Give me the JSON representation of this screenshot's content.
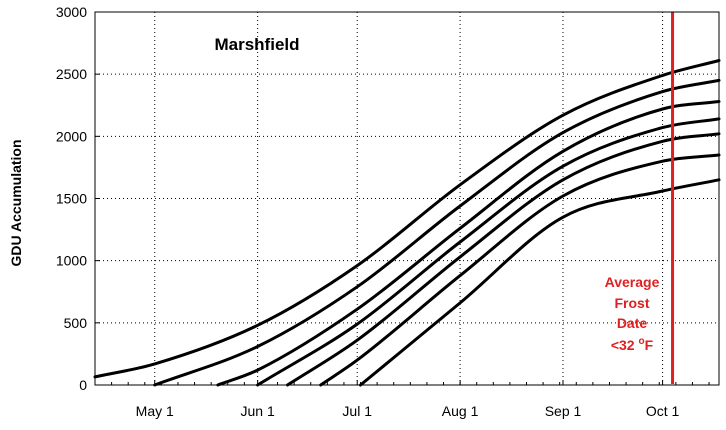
{
  "chart_data": {
    "type": "line",
    "title": "Marshfield",
    "xlabel": "",
    "ylabel": "GDU Accumulation",
    "xlim": [
      "2019-04-13",
      "2019-10-18"
    ],
    "ylim": [
      0,
      3000
    ],
    "x_ticks": [
      "2019-05-01",
      "2019-06-01",
      "2019-07-01",
      "2019-08-01",
      "2019-09-01",
      "2019-10-01"
    ],
    "x_tick_labels": [
      "May 1",
      "Jun 1",
      "Jul 1",
      "Aug 1",
      "Sep 1",
      "Oct 1"
    ],
    "y_ticks": [
      0,
      500,
      1000,
      1500,
      2000,
      2500,
      3000
    ],
    "y_tick_labels": [
      "0",
      "500",
      "1000",
      "1500",
      "2000",
      "2500",
      "3000"
    ],
    "grid": true,
    "series": [
      {
        "x": [
          "2019-04-13",
          "2019-05-01",
          "2019-06-01",
          "2019-07-01",
          "2019-08-01",
          "2019-09-01",
          "2019-10-01",
          "2019-10-18"
        ],
        "values": [
          65,
          170,
          480,
          960,
          1610,
          2170,
          2490,
          2610
        ]
      },
      {
        "x": [
          "2019-05-01",
          "2019-06-01",
          "2019-07-01",
          "2019-08-01",
          "2019-09-01",
          "2019-10-01",
          "2019-10-18"
        ],
        "values": [
          0,
          310,
          790,
          1440,
          2030,
          2360,
          2450
        ]
      },
      {
        "x": [
          "2019-05-20",
          "2019-06-01",
          "2019-07-01",
          "2019-08-01",
          "2019-09-01",
          "2019-10-01",
          "2019-10-18"
        ],
        "values": [
          0,
          120,
          610,
          1260,
          1880,
          2220,
          2280
        ]
      },
      {
        "x": [
          "2019-06-01",
          "2019-07-01",
          "2019-08-01",
          "2019-09-01",
          "2019-10-01",
          "2019-10-18"
        ],
        "values": [
          0,
          490,
          1150,
          1760,
          2070,
          2140
        ]
      },
      {
        "x": [
          "2019-06-10",
          "2019-07-01",
          "2019-08-01",
          "2019-09-01",
          "2019-10-01",
          "2019-10-18"
        ],
        "values": [
          0,
          360,
          1030,
          1650,
          1960,
          2020
        ]
      },
      {
        "x": [
          "2019-06-20",
          "2019-07-01",
          "2019-08-01",
          "2019-09-01",
          "2019-10-01",
          "2019-10-18"
        ],
        "values": [
          0,
          200,
          880,
          1520,
          1800,
          1850
        ]
      },
      {
        "x": [
          "2019-07-02",
          "2019-08-01",
          "2019-09-01",
          "2019-10-01",
          "2019-10-18"
        ],
        "values": [
          0,
          660,
          1350,
          1560,
          1650
        ]
      }
    ],
    "annotations": [
      {
        "type": "vline",
        "x": "2019-10-04",
        "color": "#e02020"
      },
      {
        "type": "text",
        "lines": [
          "Average",
          "Frost",
          "Date",
          "<32 ",
          "F"
        ],
        "superscript": "o",
        "color": "#e02020"
      }
    ]
  }
}
